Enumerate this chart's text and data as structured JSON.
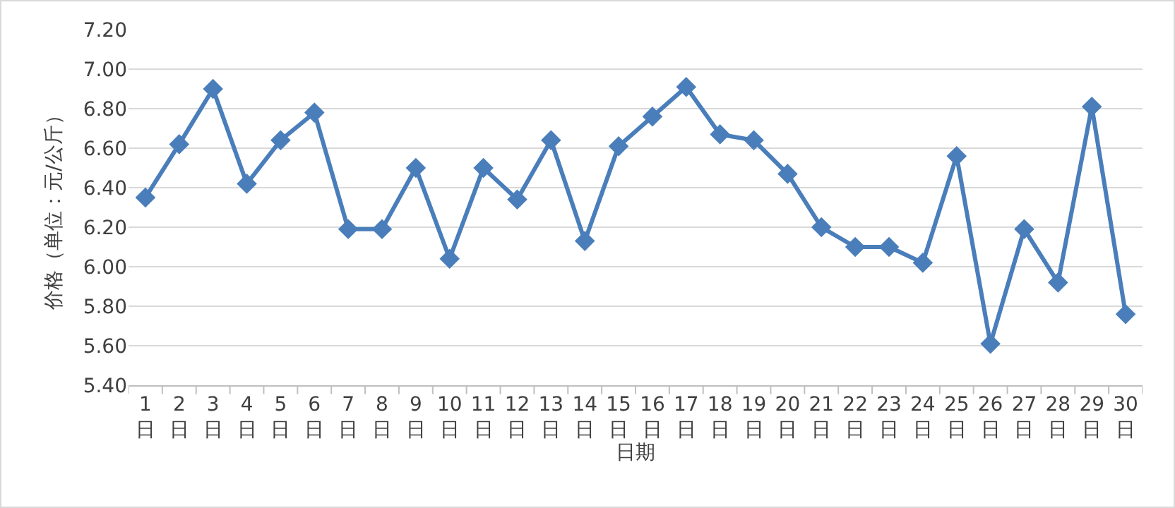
{
  "chart_data": {
    "type": "line",
    "xlabel": "日期",
    "ylabel": "价格（单位：元/公斤）",
    "categories": [
      "1日",
      "2日",
      "3日",
      "4日",
      "5日",
      "6日",
      "7日",
      "8日",
      "9日",
      "10日",
      "11日",
      "12日",
      "13日",
      "14日",
      "15日",
      "16日",
      "17日",
      "18日",
      "19日",
      "20日",
      "21日",
      "22日",
      "23日",
      "24日",
      "25日",
      "26日",
      "27日",
      "28日",
      "29日",
      "30日"
    ],
    "series": [
      {
        "color": "#4a7ebb",
        "values": [
          6.35,
          6.62,
          6.9,
          6.42,
          6.64,
          6.78,
          6.19,
          6.19,
          6.5,
          6.04,
          6.5,
          6.34,
          6.64,
          6.13,
          6.61,
          6.76,
          6.91,
          6.67,
          6.64,
          6.47,
          6.2,
          6.1,
          6.1,
          6.02,
          6.56,
          5.61,
          6.19,
          5.92,
          6.81,
          5.76
        ]
      }
    ],
    "ylim": [
      5.4,
      7.2
    ],
    "yticks": [
      {
        "value": 5.4,
        "label": "5.40"
      },
      {
        "value": 5.6,
        "label": "5.60"
      },
      {
        "value": 5.8,
        "label": "5.80"
      },
      {
        "value": 6.0,
        "label": "6.00"
      },
      {
        "value": 6.2,
        "label": "6.20"
      },
      {
        "value": 6.4,
        "label": "6.40"
      },
      {
        "value": 6.6,
        "label": "6.60"
      },
      {
        "value": 6.8,
        "label": "6.80"
      },
      {
        "value": 7.0,
        "label": "7.00"
      },
      {
        "value": 7.2,
        "label": "7.20"
      }
    ],
    "grid": "y",
    "legend": false,
    "marker": "diamond",
    "line_style": "solid"
  }
}
